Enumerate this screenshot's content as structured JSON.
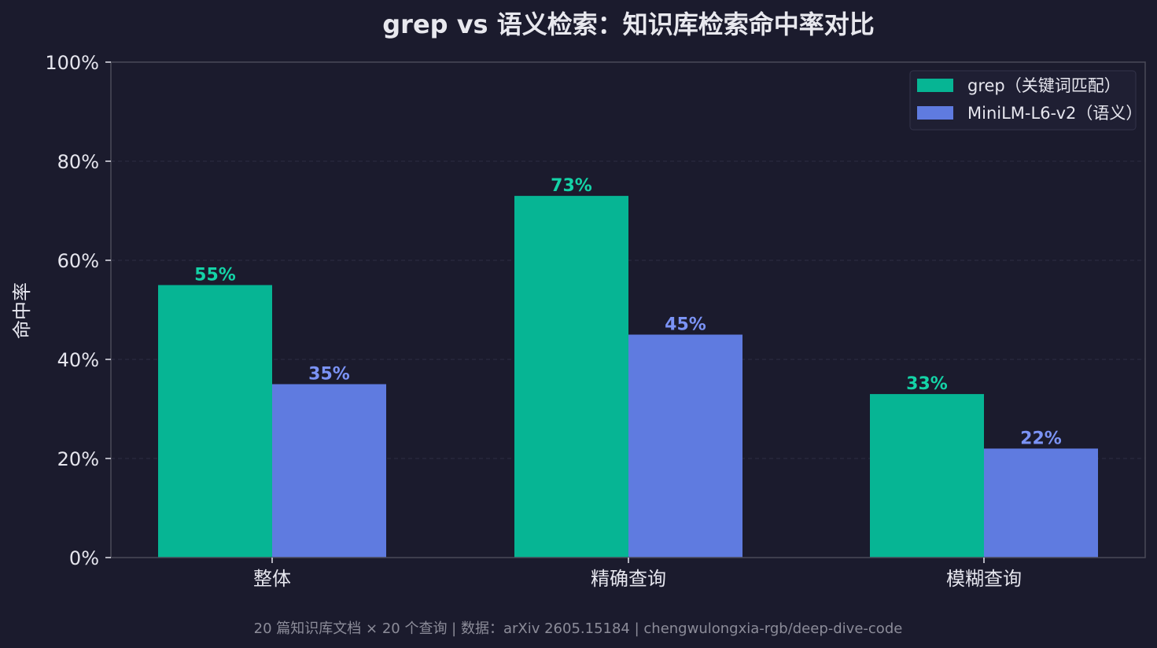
{
  "chart_data": {
    "type": "bar",
    "title": "grep vs 语义检索：知识库检索命中率对比",
    "ylabel": "命中率",
    "xlabel": "",
    "categories": [
      "整体",
      "精确查询",
      "模糊查询"
    ],
    "series": [
      {
        "name": "grep（关键词匹配）",
        "values": [
          55,
          73,
          33
        ],
        "labels": [
          "55%",
          "73%",
          "33%"
        ],
        "color": "#06b594"
      },
      {
        "name": "MiniLM-L6-v2（语义）",
        "values": [
          35,
          45,
          22
        ],
        "labels": [
          "35%",
          "45%",
          "22%"
        ],
        "color": "#5f7be0"
      }
    ],
    "label_colors": [
      "#14d3a7",
      "#7b93f5"
    ],
    "ylim": [
      0,
      100
    ],
    "yticks": [
      0,
      20,
      40,
      60,
      80,
      100
    ],
    "ytick_labels": [
      "0%",
      "20%",
      "40%",
      "60%",
      "80%",
      "100%"
    ],
    "grid": true,
    "legend_position": "top-right",
    "footnote": "20 篇知识库文档 × 20 个查询 | 数据：arXiv 2605.15184 | chengwulongxia-rgb/deep-dive-code",
    "colors": {
      "background": "#1b1b2d",
      "axis": "#4a4a58",
      "grid": "#2c2c42",
      "text": "#e6e6ee",
      "legend_bg": "#1f1f33",
      "legend_border": "#33334a"
    }
  }
}
